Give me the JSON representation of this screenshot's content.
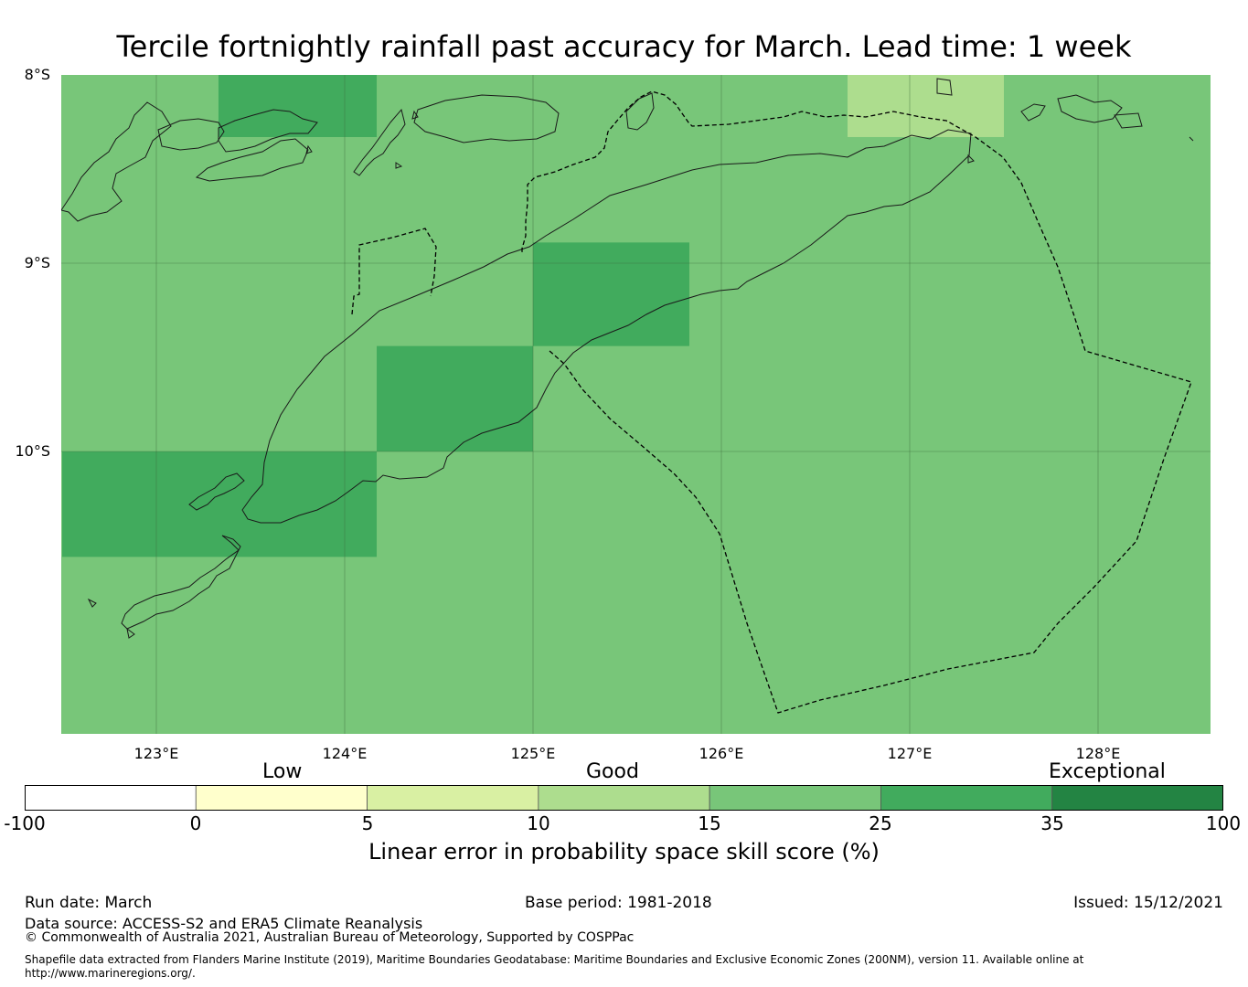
{
  "title": "Tercile fortnightly rainfall past accuracy for March. Lead time: 1 week",
  "map": {
    "lat_labels": [
      "8°S",
      "9°S",
      "10°S"
    ],
    "lon_labels": [
      "123°E",
      "124°E",
      "125°E",
      "126°E",
      "127°E",
      "128°E"
    ],
    "extent": {
      "lon": [
        122.5,
        128.6
      ],
      "lat": [
        -11.5,
        -8.0
      ]
    },
    "grid_lons": [
      123,
      124,
      125,
      126,
      127,
      128
    ],
    "grid_lats": [
      -9,
      -10
    ],
    "base_category_color": "#78c679",
    "cells": [
      {
        "lon": [
          123.33,
          124.17
        ],
        "lat": [
          -8.0,
          -8.33
        ],
        "color": "#41ab5d",
        "category": "25-35"
      },
      {
        "lon": [
          125.0,
          125.83
        ],
        "lat": [
          -8.89,
          -9.44
        ],
        "color": "#41ab5d",
        "category": "25-35"
      },
      {
        "lon": [
          124.17,
          125.0
        ],
        "lat": [
          -9.44,
          -10.0
        ],
        "color": "#41ab5d",
        "category": "25-35"
      },
      {
        "lon": [
          122.5,
          124.17
        ],
        "lat": [
          -10.0,
          -10.56
        ],
        "color": "#41ab5d",
        "category": "25-35"
      },
      {
        "lon": [
          126.67,
          127.5
        ],
        "lat": [
          -8.0,
          -8.33
        ],
        "color": "#addd8e",
        "category": "10-15"
      }
    ]
  },
  "colorbar": {
    "categories": [
      "Low",
      "Good",
      "Exceptional"
    ],
    "ticks": [
      "-100",
      "0",
      "5",
      "10",
      "15",
      "25",
      "35",
      "100"
    ],
    "colors": [
      "#ffffff",
      "#ffffcc",
      "#d9f0a3",
      "#addd8e",
      "#78c679",
      "#41ab5d",
      "#238443"
    ],
    "label": "Linear error in probability space skill score (%)"
  },
  "footer": {
    "run_date": "Run date: March",
    "base_period": "Base period: 1981-2018",
    "issued": "Issued: 15/12/2021",
    "data_source": "Data source: ACCESS-S2 and ERA5 Climate Reanalysis",
    "copyright": "© Commonwealth of Australia 2021, Australian Bureau of Meteorology, Supported by COSPPac",
    "shapefile_line1": "Shapefile data extracted from Flanders Marine Institute (2019), Maritime Boundaries Geodatabase: Maritime Boundaries and Exclusive Economic Zones (200NM), version 11. Available online at",
    "shapefile_line2": "http://www.marineregions.org/."
  }
}
